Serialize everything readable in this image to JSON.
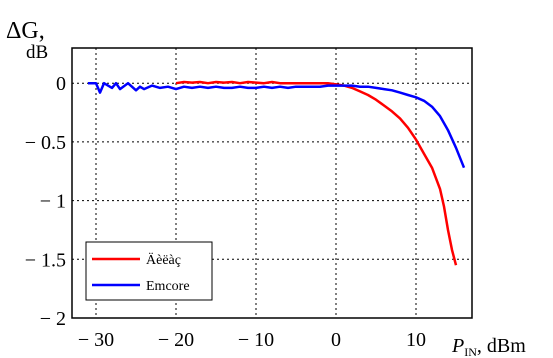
{
  "chart_data": {
    "type": "line",
    "ylabel_symbol": "ΔG,",
    "ylabel_unit": "dB",
    "xlabel_symbol": "P",
    "xlabel_subscript": "IN",
    "xlabel_unit": ", dBm",
    "xlim": [
      -33,
      17
    ],
    "ylim": [
      -2,
      0.3
    ],
    "xticks": [
      -30,
      -20,
      -10,
      0,
      10
    ],
    "xtick_labels": [
      "− 30",
      "− 20",
      "− 10",
      "0",
      "10"
    ],
    "yticks": [
      0,
      -0.5,
      -1,
      -1.5,
      -2
    ],
    "ytick_labels": [
      "0",
      "− 0.5",
      "− 1",
      "− 1.5",
      "− 2"
    ],
    "grid": true,
    "legend_position": "bottom-left",
    "series": [
      {
        "name": "Äèëàç",
        "color": "#ff0000",
        "x": [
          -20,
          -19,
          -18,
          -17,
          -16,
          -15,
          -14,
          -13,
          -12,
          -11,
          -10,
          -9,
          -8,
          -7,
          -6,
          -5,
          -4,
          -3,
          -2,
          -1,
          0,
          1,
          2,
          3,
          4,
          5,
          6,
          7,
          8,
          9,
          10,
          11,
          12,
          13,
          13.5,
          14,
          14.5,
          15
        ],
        "y": [
          0.0,
          0.01,
          0.005,
          0.01,
          0.0,
          0.01,
          0.005,
          0.01,
          0.0,
          0.01,
          0.005,
          0.0,
          0.01,
          0.0,
          0.0,
          0.0,
          0.0,
          0.0,
          0.0,
          0.0,
          -0.01,
          -0.02,
          -0.04,
          -0.07,
          -0.1,
          -0.14,
          -0.19,
          -0.24,
          -0.3,
          -0.38,
          -0.48,
          -0.6,
          -0.72,
          -0.9,
          -1.05,
          -1.25,
          -1.42,
          -1.55
        ]
      },
      {
        "name": "Emcore",
        "color": "#0000ff",
        "x": [
          -31,
          -30,
          -29.5,
          -29,
          -28,
          -27.5,
          -27,
          -26,
          -25,
          -24.5,
          -24,
          -23,
          -22,
          -21,
          -20,
          -19,
          -18,
          -17,
          -16,
          -15,
          -14,
          -13,
          -12,
          -11,
          -10,
          -9,
          -8,
          -7,
          -6,
          -5,
          -4,
          -3,
          -2,
          -1,
          0,
          1,
          2,
          3,
          4,
          5,
          6,
          7,
          8,
          9,
          10,
          11,
          12,
          13,
          14,
          15,
          16
        ],
        "y": [
          0.0,
          0.0,
          -0.08,
          0.0,
          -0.04,
          0.0,
          -0.05,
          0.0,
          -0.06,
          -0.03,
          -0.05,
          -0.02,
          -0.04,
          -0.03,
          -0.05,
          -0.03,
          -0.04,
          -0.03,
          -0.04,
          -0.03,
          -0.04,
          -0.04,
          -0.03,
          -0.04,
          -0.04,
          -0.03,
          -0.04,
          -0.03,
          -0.04,
          -0.03,
          -0.03,
          -0.03,
          -0.03,
          -0.02,
          -0.02,
          -0.02,
          -0.02,
          -0.03,
          -0.03,
          -0.04,
          -0.05,
          -0.06,
          -0.08,
          -0.1,
          -0.12,
          -0.15,
          -0.2,
          -0.28,
          -0.4,
          -0.55,
          -0.72
        ]
      }
    ]
  }
}
